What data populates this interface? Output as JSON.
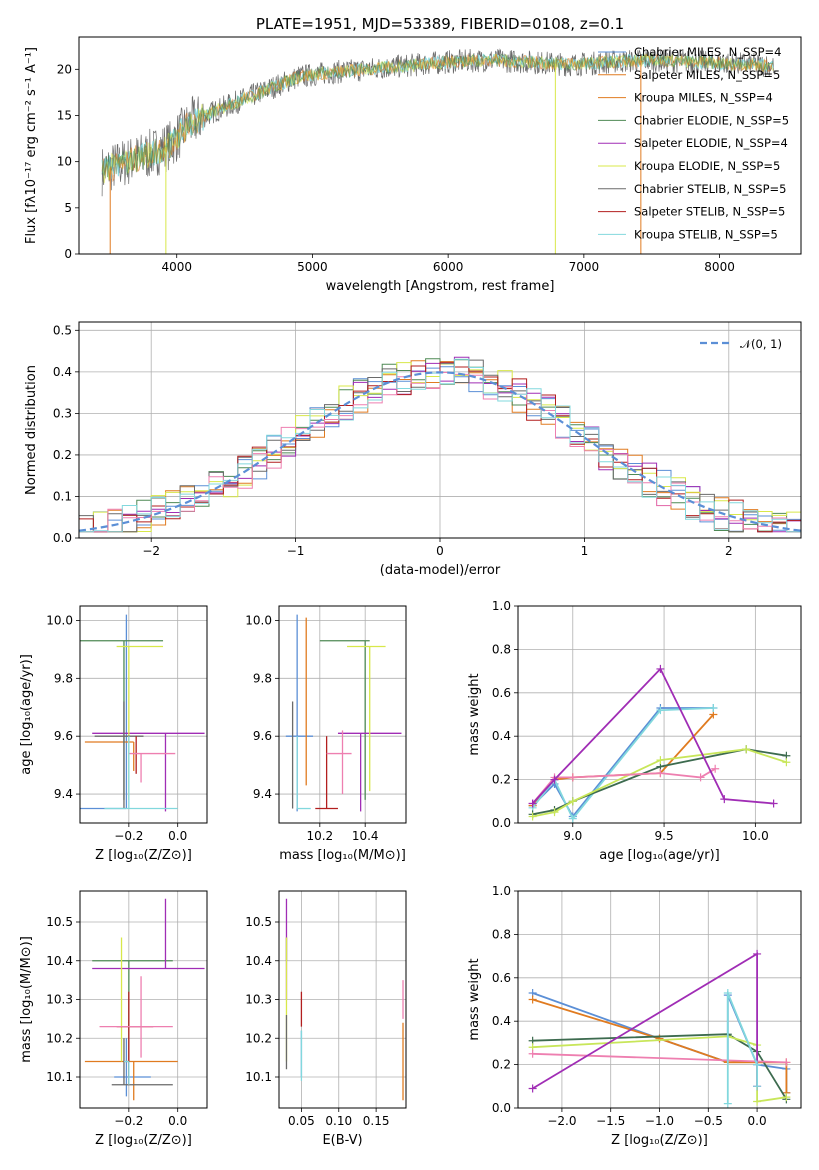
{
  "figure": {
    "title": "PLATE=1951, MJD=53389, FIBERID=0108, z=0.1"
  },
  "colors": {
    "blue": "#5b8fd6",
    "orange": "#e07b20",
    "green": "#4f8a55",
    "purple": "#a02db5",
    "yellow": "#d8e84a",
    "gray": "#6a6a6a",
    "red": "#b21f1f",
    "pink": "#ee7fb0",
    "cyan": "#82d8dd",
    "darkgreen": "#3d6b4f",
    "limegreen": "#c8e65a"
  },
  "chart_data": [
    {
      "id": "spectrum",
      "type": "line",
      "xlabel": "wavelength [Angstrom, rest frame]",
      "ylabel": "Flux [fλ10⁻¹⁷ erg cm⁻² s⁻¹ A⁻¹]",
      "xlim": [
        3280,
        8600
      ],
      "ylim": [
        0,
        23.5
      ],
      "xticks": [
        "4000",
        "5000",
        "6000",
        "7000",
        "8000"
      ],
      "xtick_values": [
        4000,
        5000,
        6000,
        7000,
        8000
      ],
      "yticks": [
        "0",
        "5",
        "10",
        "15",
        "20"
      ],
      "ytick_values": [
        0,
        5,
        10,
        15,
        20
      ],
      "legend_position": "upper-right",
      "continuum_x": [
        3450,
        3600,
        3800,
        3950,
        4100,
        4300,
        4500,
        4700,
        4900,
        5100,
        5400,
        5700,
        6000,
        6300,
        6600,
        6900,
        7200,
        7500,
        7800,
        8100,
        8400
      ],
      "continuum_y": [
        9.0,
        9.8,
        10.8,
        11.8,
        14.2,
        15.6,
        16.8,
        18.0,
        19.2,
        19.6,
        20.0,
        20.4,
        20.8,
        21.0,
        20.8,
        20.5,
        20.8,
        21.0,
        20.8,
        20.6,
        20.4
      ],
      "series": [
        {
          "name": "Chabrier MILES, N_SSP=4",
          "color_key": "blue"
        },
        {
          "name": "Salpeter MILES, N_SSP=5",
          "color_key": "orange"
        },
        {
          "name": "Kroupa MILES, N_SSP=4",
          "color_key": "orange"
        },
        {
          "name": "Chabrier ELODIE, N_SSP=5",
          "color_key": "green"
        },
        {
          "name": "Salpeter ELODIE, N_SSP=4",
          "color_key": "purple"
        },
        {
          "name": "Kroupa ELODIE, N_SSP=5",
          "color_key": "yellow"
        },
        {
          "name": "Chabrier STELIB, N_SSP=5",
          "color_key": "gray"
        },
        {
          "name": "Salpeter STELIB, N_SSP=5",
          "color_key": "red"
        },
        {
          "name": "Kroupa STELIB, N_SSP=5",
          "color_key": "cyan"
        }
      ]
    },
    {
      "id": "residuals",
      "type": "line",
      "xlabel": "(data-model)/error",
      "ylabel": "Normed distribution",
      "xlim": [
        -2.5,
        2.5
      ],
      "ylim": [
        0,
        0.52
      ],
      "xticks": [
        "−2",
        "−1",
        "0",
        "1",
        "2"
      ],
      "xtick_values": [
        -2,
        -1,
        0,
        1,
        2
      ],
      "yticks": [
        "0.0",
        "0.1",
        "0.2",
        "0.3",
        "0.4",
        "0.5"
      ],
      "ytick_values": [
        0.0,
        0.1,
        0.2,
        0.3,
        0.4,
        0.5
      ],
      "grid": true,
      "legend_position": "upper-right",
      "gaussian_label": "𝒩(0, 1)",
      "series_colors": [
        "blue",
        "orange",
        "green",
        "purple",
        "yellow",
        "gray",
        "red",
        "pink",
        "cyan"
      ]
    },
    {
      "id": "age_vs_Z",
      "type": "scatter",
      "xlabel": "Z [log₁₀(Z/Z⊙)]",
      "ylabel": "age  [log₁₀(age/yr)]",
      "xlim": [
        -0.4,
        0.12
      ],
      "ylim": [
        9.3,
        10.05
      ],
      "xticks": [
        "−0.2",
        "0.0"
      ],
      "xtick_values": [
        -0.2,
        0.0
      ],
      "yticks": [
        "9.4",
        "9.6",
        "9.8",
        "10.0"
      ],
      "ytick_values": [
        9.4,
        9.6,
        9.8,
        10.0
      ],
      "grid": true,
      "points": [
        {
          "x": -0.21,
          "y": 9.35,
          "xerr": [
            0.27,
            0.0
          ],
          "yerr": [
            0.0,
            0.67
          ],
          "color_key": "blue"
        },
        {
          "x": -0.18,
          "y": 9.58,
          "xerr": [
            0.2,
            0.0
          ],
          "yerr": [
            0.1,
            0.0
          ],
          "color_key": "orange"
        },
        {
          "x": -0.22,
          "y": 9.93,
          "xerr": [
            0.2,
            0.16
          ],
          "yerr": [
            0.55,
            0.0
          ],
          "color_key": "green"
        },
        {
          "x": -0.05,
          "y": 9.61,
          "xerr": [
            0.3,
            0.16
          ],
          "yerr": [
            0.27,
            0.0
          ],
          "color_key": "purple"
        },
        {
          "x": -0.2,
          "y": 9.91,
          "xerr": [
            0.05,
            0.14
          ],
          "yerr": [
            0.53,
            0.0
          ],
          "color_key": "yellow"
        },
        {
          "x": -0.22,
          "y": 9.6,
          "xerr": [
            0.12,
            0.08
          ],
          "yerr": [
            0.25,
            0.12
          ],
          "color_key": "gray"
        },
        {
          "x": -0.17,
          "y": 9.6,
          "xerr": [
            0.0,
            0.0
          ],
          "yerr": [
            0.13,
            0.0
          ],
          "color_key": "red"
        },
        {
          "x": -0.15,
          "y": 9.54,
          "xerr": [
            0.05,
            0.14
          ],
          "yerr": [
            0.1,
            0.0
          ],
          "color_key": "pink"
        },
        {
          "x": -0.2,
          "y": 9.35,
          "xerr": [
            0.1,
            0.2
          ],
          "yerr": [
            0.0,
            0.25
          ],
          "color_key": "cyan"
        }
      ]
    },
    {
      "id": "age_vs_mass",
      "type": "scatter",
      "xlabel": "mass [log₁₀(M/M⊙)]",
      "ylabel": "",
      "xlim": [
        10.02,
        10.58
      ],
      "ylim": [
        9.3,
        10.05
      ],
      "xticks": [
        "10.2",
        "10.4"
      ],
      "xtick_values": [
        10.2,
        10.4
      ],
      "yticks": [
        "9.4",
        "9.6",
        "9.8",
        "10.0"
      ],
      "ytick_values": [
        9.4,
        9.6,
        9.8,
        10.0
      ],
      "grid": true,
      "points": [
        {
          "x": 10.1,
          "y": 9.6,
          "xerr": [
            0.05,
            0.07
          ],
          "yerr": [
            0.26,
            0.42
          ],
          "color_key": "blue"
        },
        {
          "x": 10.14,
          "y": 9.93,
          "xerr": [
            0.0,
            0.0
          ],
          "yerr": [
            0.5,
            0.08
          ],
          "color_key": "orange"
        },
        {
          "x": 10.4,
          "y": 9.93,
          "xerr": [
            0.2,
            0.02
          ],
          "yerr": [
            0.55,
            0.0
          ],
          "color_key": "green"
        },
        {
          "x": 10.38,
          "y": 9.61,
          "xerr": [
            0.1,
            0.18
          ],
          "yerr": [
            0.27,
            0.0
          ],
          "color_key": "purple"
        },
        {
          "x": 10.42,
          "y": 9.91,
          "xerr": [
            0.1,
            0.07
          ],
          "yerr": [
            0.5,
            0.0
          ],
          "color_key": "yellow"
        },
        {
          "x": 10.08,
          "y": 9.6,
          "xerr": [
            0.0,
            0.0
          ],
          "yerr": [
            0.25,
            0.12
          ],
          "color_key": "gray"
        },
        {
          "x": 10.23,
          "y": 9.35,
          "xerr": [
            0.05,
            0.05
          ],
          "yerr": [
            0.0,
            0.25
          ],
          "color_key": "red"
        },
        {
          "x": 10.3,
          "y": 9.54,
          "xerr": [
            0.07,
            0.04
          ],
          "yerr": [
            0.14,
            0.08
          ],
          "color_key": "pink"
        },
        {
          "x": 10.1,
          "y": 9.35,
          "xerr": [
            0.0,
            0.06
          ],
          "yerr": [
            0.0,
            0.25
          ],
          "color_key": "cyan"
        }
      ]
    },
    {
      "id": "massweight_vs_age",
      "type": "line",
      "xlabel": "age  [log₁₀(age/yr)]",
      "ylabel": "mass weight",
      "xlim": [
        8.7,
        10.25
      ],
      "ylim": [
        0,
        1
      ],
      "xticks": [
        "9.0",
        "9.5",
        "10.0"
      ],
      "xtick_values": [
        9.0,
        9.5,
        10.0
      ],
      "yticks": [
        "0.0",
        "0.2",
        "0.4",
        "0.6",
        "0.8",
        "1.0"
      ],
      "ytick_values": [
        0.0,
        0.2,
        0.4,
        0.6,
        0.8,
        1.0
      ],
      "grid": true,
      "series": [
        {
          "color_key": "blue",
          "x": [
            8.78,
            8.9,
            9.0,
            9.48,
            9.77
          ],
          "y": [
            0.08,
            0.18,
            0.03,
            0.53,
            0.53
          ]
        },
        {
          "color_key": "orange",
          "x": [
            8.78,
            8.9,
            9.0,
            9.48,
            9.77
          ],
          "y": [
            0.08,
            0.2,
            0.21,
            0.23,
            0.5
          ]
        },
        {
          "color_key": "cyan",
          "x": [
            8.78,
            8.9,
            9.0,
            9.48,
            9.77
          ],
          "y": [
            0.07,
            0.2,
            0.02,
            0.52,
            0.53
          ]
        },
        {
          "color_key": "darkgreen",
          "x": [
            8.78,
            8.9,
            9.0,
            9.48,
            9.95,
            10.17
          ],
          "y": [
            0.04,
            0.06,
            0.1,
            0.26,
            0.34,
            0.31
          ]
        },
        {
          "color_key": "limegreen",
          "x": [
            8.78,
            8.9,
            9.0,
            9.48,
            9.95,
            10.17
          ],
          "y": [
            0.03,
            0.05,
            0.1,
            0.29,
            0.34,
            0.28
          ]
        },
        {
          "color_key": "pink",
          "x": [
            8.78,
            8.9,
            9.0,
            9.48,
            9.7,
            9.78
          ],
          "y": [
            0.09,
            0.21,
            0.21,
            0.23,
            0.21,
            0.25
          ]
        },
        {
          "color_key": "purple",
          "x": [
            8.78,
            8.9,
            9.48,
            9.83,
            10.1
          ],
          "y": [
            0.09,
            0.2,
            0.71,
            0.11,
            0.09
          ]
        }
      ]
    },
    {
      "id": "mass_vs_Z",
      "type": "scatter",
      "xlabel": "Z [log₁₀(Z/Z⊙)]",
      "ylabel": "mass [log₁₀(M/M⊙)]",
      "xlim": [
        -0.4,
        0.12
      ],
      "ylim": [
        10.02,
        10.58
      ],
      "xticks": [
        "−0.2",
        "0.0"
      ],
      "xtick_values": [
        -0.2,
        0.0
      ],
      "yticks": [
        "10.1",
        "10.2",
        "10.3",
        "10.4",
        "10.5"
      ],
      "ytick_values": [
        10.1,
        10.2,
        10.3,
        10.4,
        10.5
      ],
      "grid": true,
      "points": [
        {
          "x": -0.21,
          "y": 10.1,
          "xerr": [
            0.05,
            0.1
          ],
          "yerr": [
            0.05,
            0.1
          ],
          "color_key": "blue"
        },
        {
          "x": -0.18,
          "y": 10.14,
          "xerr": [
            0.2,
            0.18
          ],
          "yerr": [
            0.1,
            0.0
          ],
          "color_key": "orange"
        },
        {
          "x": -0.2,
          "y": 10.4,
          "xerr": [
            0.15,
            0.18
          ],
          "yerr": [
            0.3,
            0.0
          ],
          "color_key": "green"
        },
        {
          "x": -0.05,
          "y": 10.38,
          "xerr": [
            0.3,
            0.16
          ],
          "yerr": [
            0.0,
            0.18
          ],
          "color_key": "purple"
        },
        {
          "x": -0.23,
          "y": 10.4,
          "xerr": [
            0.0,
            0.0
          ],
          "yerr": [
            0.26,
            0.06
          ],
          "color_key": "yellow"
        },
        {
          "x": -0.22,
          "y": 10.08,
          "xerr": [
            0.05,
            0.2
          ],
          "yerr": [
            0.0,
            0.12
          ],
          "color_key": "gray"
        },
        {
          "x": -0.2,
          "y": 10.23,
          "xerr": [
            0.05,
            0.1
          ],
          "yerr": [
            0.15,
            0.09
          ],
          "color_key": "red"
        },
        {
          "x": -0.15,
          "y": 10.23,
          "xerr": [
            0.17,
            0.13
          ],
          "yerr": [
            0.08,
            0.13
          ],
          "color_key": "pink"
        },
        {
          "x": -0.2,
          "y": 10.14,
          "xerr": [
            0.02,
            0.0
          ],
          "yerr": [
            0.06,
            0.0
          ],
          "color_key": "cyan"
        }
      ]
    },
    {
      "id": "mass_vs_EBV",
      "type": "scatter",
      "xlabel": "E(B-V)",
      "ylabel": "",
      "xlim": [
        0.02,
        0.19
      ],
      "ylim": [
        10.02,
        10.58
      ],
      "xticks": [
        "0.05",
        "0.10",
        "0.15"
      ],
      "xtick_values": [
        0.05,
        0.1,
        0.15
      ],
      "yticks": [
        "10.1",
        "10.2",
        "10.3",
        "10.4",
        "10.5"
      ],
      "ytick_values": [
        10.1,
        10.2,
        10.3,
        10.4,
        10.5
      ],
      "grid": true,
      "points": [
        {
          "x": 0.05,
          "y": 10.1,
          "xerr": [
            0,
            0
          ],
          "yerr": [
            0.0,
            0.12
          ],
          "color_key": "blue"
        },
        {
          "x": 0.186,
          "y": 10.14,
          "xerr": [
            0,
            0
          ],
          "yerr": [
            0.1,
            0.1
          ],
          "color_key": "orange"
        },
        {
          "x": 0.03,
          "y": 10.4,
          "xerr": [
            0,
            0
          ],
          "yerr": [
            0.0,
            0.06
          ],
          "color_key": "green"
        },
        {
          "x": 0.03,
          "y": 10.38,
          "xerr": [
            0,
            0
          ],
          "yerr": [
            0.08,
            0.18
          ],
          "color_key": "purple"
        },
        {
          "x": 0.03,
          "y": 10.4,
          "xerr": [
            0,
            0
          ],
          "yerr": [
            0.26,
            0.06
          ],
          "color_key": "yellow"
        },
        {
          "x": 0.03,
          "y": 10.2,
          "xerr": [
            0,
            0
          ],
          "yerr": [
            0.08,
            0.06
          ],
          "color_key": "gray"
        },
        {
          "x": 0.05,
          "y": 10.23,
          "xerr": [
            0,
            0
          ],
          "yerr": [
            0.0,
            0.09
          ],
          "color_key": "red"
        },
        {
          "x": 0.186,
          "y": 10.25,
          "xerr": [
            0,
            0
          ],
          "yerr": [
            0.0,
            0.1
          ],
          "color_key": "pink"
        },
        {
          "x": 0.05,
          "y": 10.14,
          "xerr": [
            0,
            0
          ],
          "yerr": [
            0.05,
            0.08
          ],
          "color_key": "cyan"
        }
      ]
    },
    {
      "id": "massweight_vs_Z",
      "type": "line",
      "xlabel": "Z [log₁₀(Z/Z⊙)]",
      "ylabel": "mass weight",
      "xlim": [
        -2.45,
        0.45
      ],
      "ylim": [
        0,
        1
      ],
      "xticks": [
        "−2.0",
        "−1.5",
        "−1.0",
        "−0.5",
        "0.0"
      ],
      "xtick_values": [
        -2.0,
        -1.5,
        -1.0,
        -0.5,
        0.0
      ],
      "yticks": [
        "0.0",
        "0.2",
        "0.4",
        "0.6",
        "0.8",
        "1.0"
      ],
      "ytick_values": [
        0.0,
        0.2,
        0.4,
        0.6,
        0.8,
        1.0
      ],
      "grid": true,
      "series": [
        {
          "color_key": "blue",
          "x": [
            -2.3,
            -1.0,
            -0.3,
            -0.3,
            0.0,
            0.3,
            0.3
          ],
          "y": [
            0.53,
            0.32,
            0.21,
            0.52,
            0.2,
            0.18,
            0.07
          ]
        },
        {
          "color_key": "orange",
          "x": [
            -2.3,
            -1.0,
            -0.3,
            0.0,
            0.3,
            0.3
          ],
          "y": [
            0.5,
            0.32,
            0.21,
            0.21,
            0.21,
            0.07
          ]
        },
        {
          "color_key": "darkgreen",
          "x": [
            -2.3,
            -0.3,
            0.0,
            0.3
          ],
          "y": [
            0.31,
            0.34,
            0.26,
            0.04
          ]
        },
        {
          "color_key": "limegreen",
          "x": [
            -2.3,
            -0.3,
            0.0,
            0.0,
            0.3
          ],
          "y": [
            0.28,
            0.33,
            0.29,
            0.03,
            0.05
          ]
        },
        {
          "color_key": "pink",
          "x": [
            -2.3,
            0.3
          ],
          "y": [
            0.25,
            0.21
          ]
        },
        {
          "color_key": "purple",
          "x": [
            -2.3,
            0.0,
            0.0
          ],
          "y": [
            0.09,
            0.71,
            0.1
          ]
        },
        {
          "color_key": "cyan",
          "x": [
            -0.3,
            -0.3,
            0.0,
            0.0
          ],
          "y": [
            0.02,
            0.53,
            0.2,
            0.1
          ]
        }
      ]
    }
  ]
}
